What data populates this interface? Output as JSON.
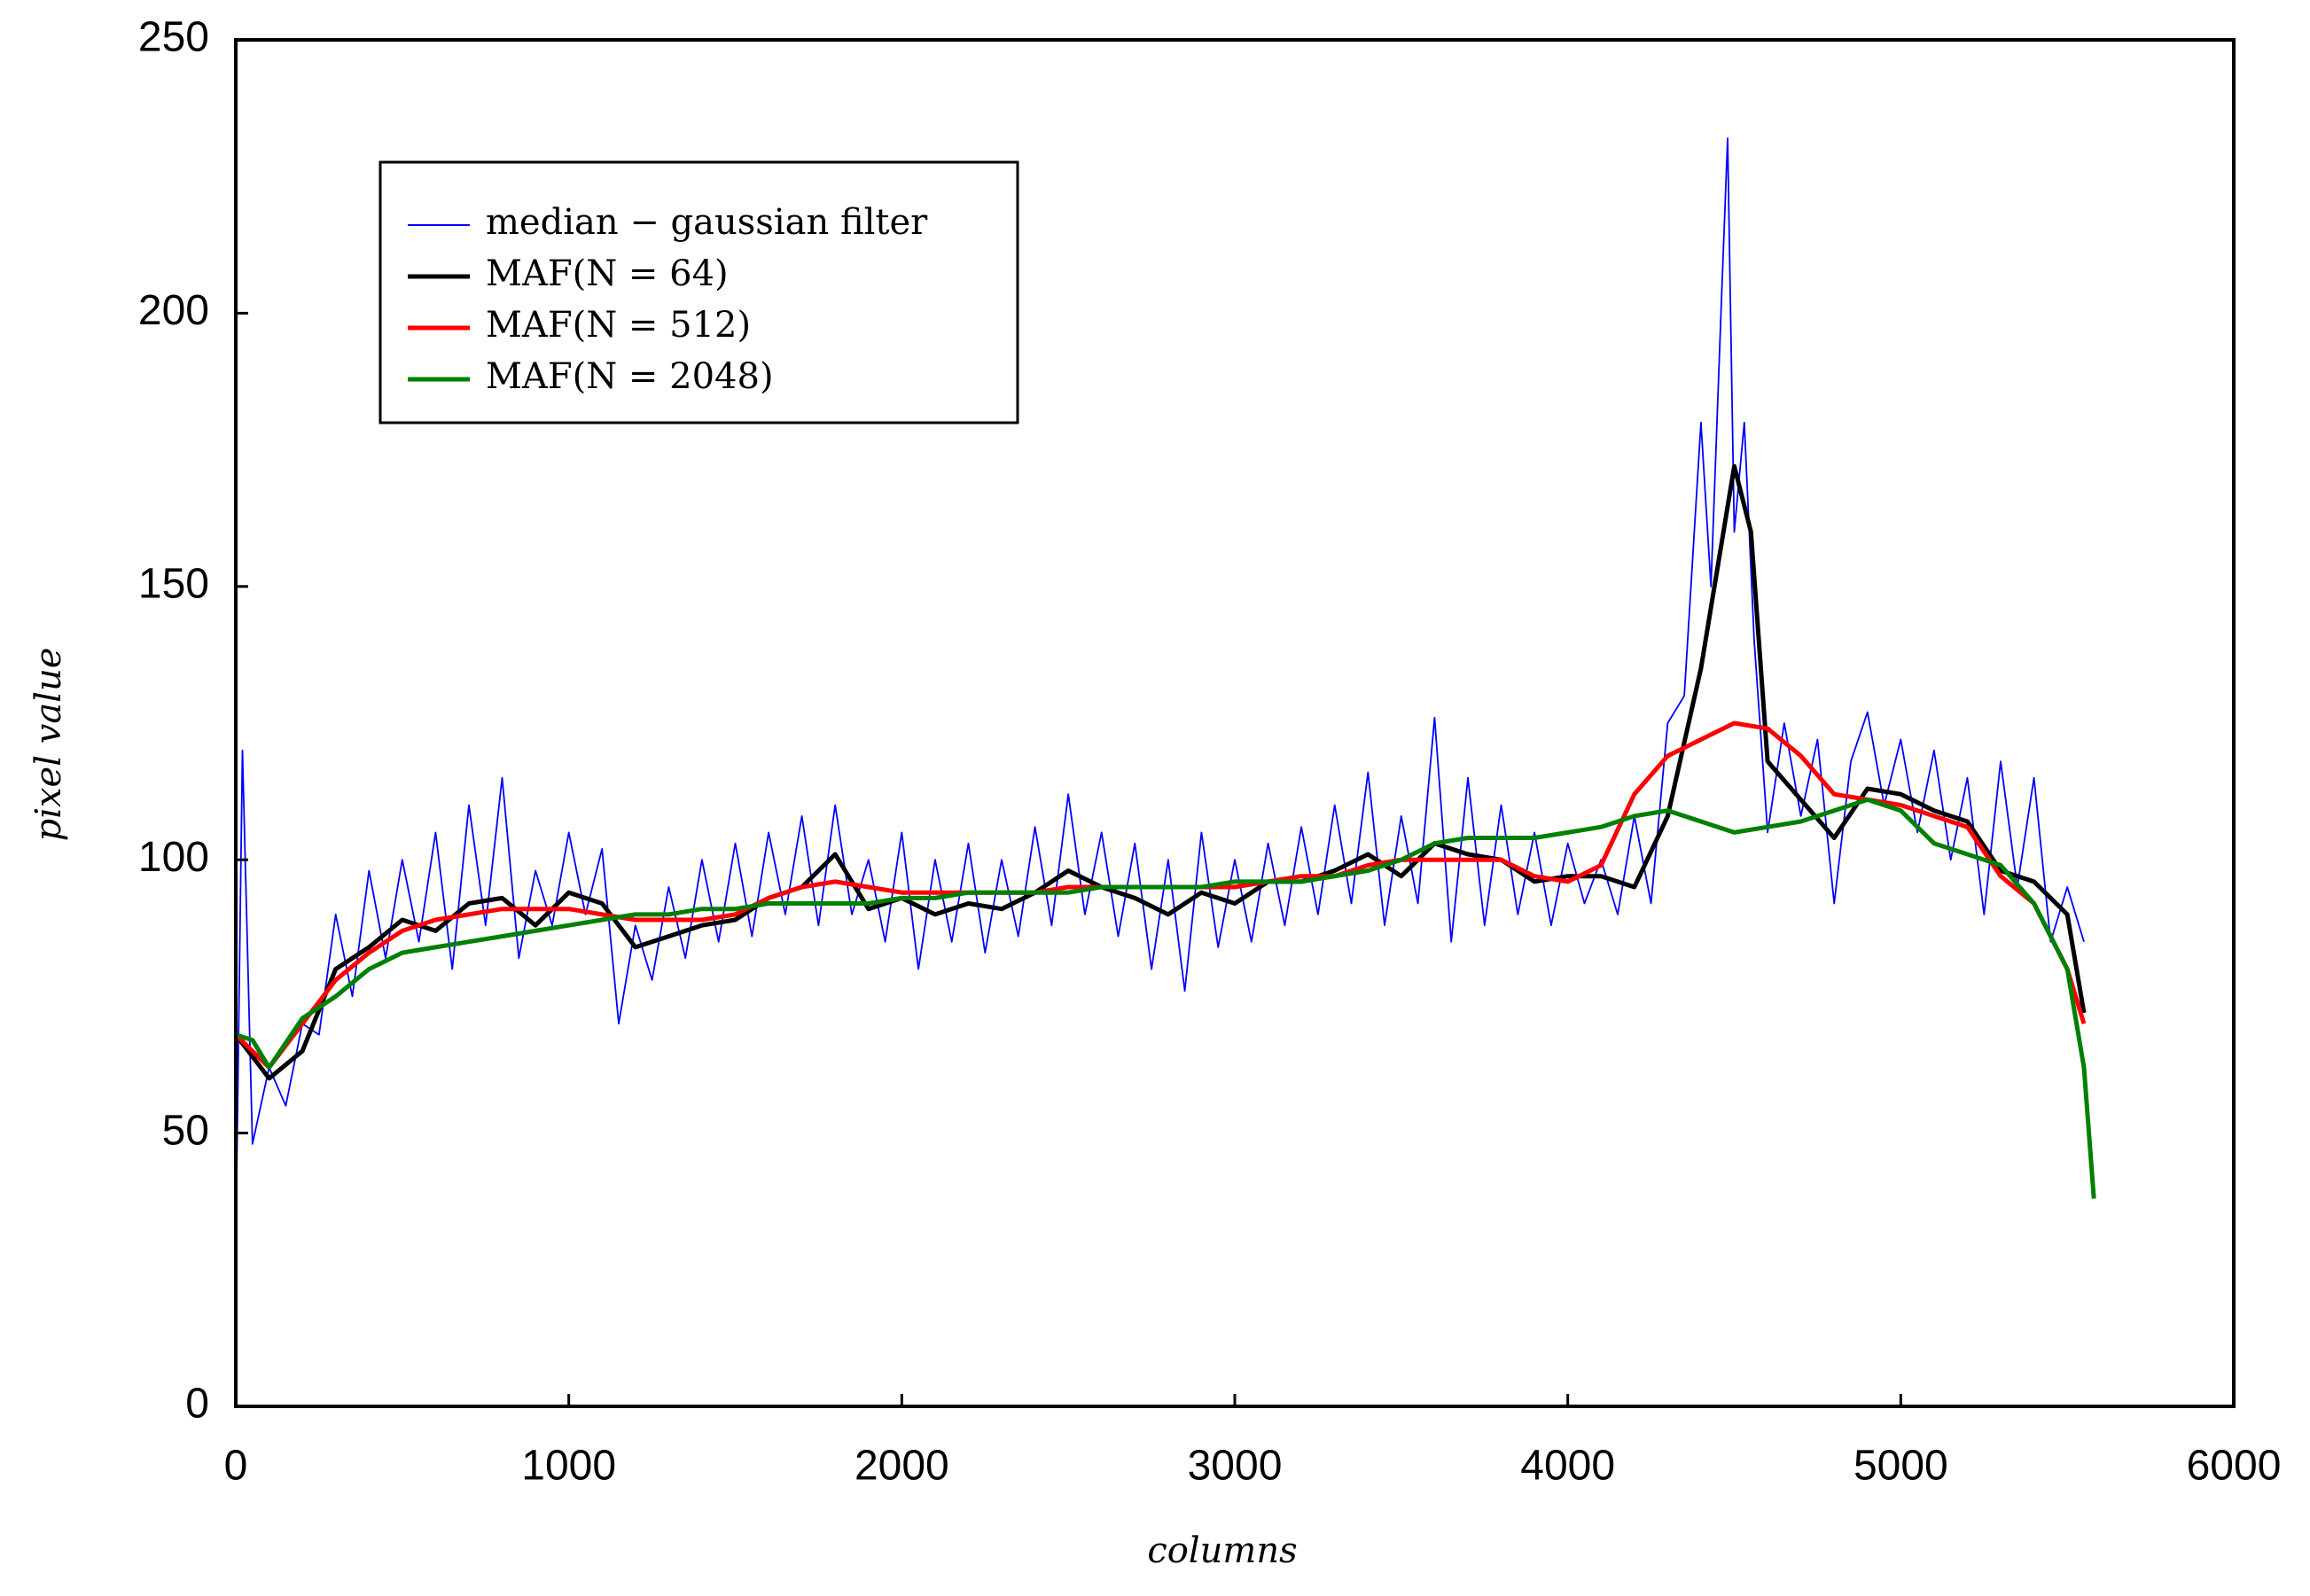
{
  "chart_data": {
    "type": "line",
    "xlabel": "columns",
    "ylabel": "pixel value",
    "xlim": [
      0,
      6000
    ],
    "xticks": [
      0,
      1000,
      2000,
      3000,
      4000,
      5000,
      6000
    ],
    "ylim": [
      0,
      250
    ],
    "yticks": [
      0,
      50,
      100,
      150,
      200,
      250
    ],
    "legend": "upper left",
    "series": [
      {
        "name": "median − gaussian filter",
        "color": "#0000ff",
        "x": [
          0,
          20,
          50,
          100,
          150,
          200,
          250,
          300,
          350,
          400,
          450,
          500,
          550,
          600,
          650,
          700,
          750,
          800,
          850,
          900,
          950,
          1000,
          1050,
          1100,
          1150,
          1200,
          1250,
          1300,
          1350,
          1400,
          1450,
          1500,
          1550,
          1600,
          1650,
          1700,
          1750,
          1800,
          1850,
          1900,
          1950,
          2000,
          2050,
          2100,
          2150,
          2200,
          2250,
          2300,
          2350,
          2400,
          2450,
          2500,
          2550,
          2600,
          2650,
          2700,
          2750,
          2800,
          2850,
          2900,
          2950,
          3000,
          3050,
          3100,
          3150,
          3200,
          3250,
          3300,
          3350,
          3400,
          3450,
          3500,
          3550,
          3600,
          3650,
          3700,
          3750,
          3800,
          3850,
          3900,
          3950,
          4000,
          4050,
          4100,
          4150,
          4200,
          4250,
          4300,
          4350,
          4400,
          4430,
          4460,
          4480,
          4500,
          4530,
          4560,
          4600,
          4650,
          4700,
          4750,
          4800,
          4850,
          4900,
          4950,
          5000,
          5050,
          5100,
          5150,
          5200,
          5250,
          5300,
          5350,
          5400,
          5450,
          5500,
          5550
        ],
        "values": [
          30,
          120,
          48,
          62,
          55,
          70,
          68,
          90,
          75,
          98,
          82,
          100,
          85,
          105,
          80,
          110,
          88,
          115,
          82,
          98,
          88,
          105,
          90,
          102,
          70,
          88,
          78,
          95,
          82,
          100,
          85,
          103,
          86,
          105,
          90,
          108,
          88,
          110,
          90,
          100,
          85,
          105,
          80,
          100,
          85,
          103,
          83,
          100,
          86,
          106,
          88,
          112,
          90,
          105,
          86,
          103,
          80,
          100,
          76,
          105,
          84,
          100,
          85,
          103,
          88,
          106,
          90,
          110,
          92,
          116,
          88,
          108,
          92,
          126,
          85,
          115,
          88,
          110,
          90,
          105,
          88,
          103,
          92,
          100,
          90,
          108,
          92,
          125,
          130,
          180,
          150,
          200,
          232,
          160,
          180,
          140,
          105,
          125,
          108,
          122,
          92,
          118,
          127,
          110,
          122,
          105,
          120,
          100,
          115,
          90,
          118,
          95,
          115,
          85,
          95,
          85
        ]
      },
      {
        "name": "MAF(N = 64)",
        "color": "#000000",
        "x": [
          0,
          100,
          200,
          300,
          400,
          500,
          600,
          700,
          800,
          900,
          1000,
          1100,
          1200,
          1300,
          1400,
          1500,
          1600,
          1700,
          1800,
          1900,
          2000,
          2100,
          2200,
          2300,
          2400,
          2500,
          2600,
          2700,
          2800,
          2900,
          3000,
          3100,
          3200,
          3300,
          3400,
          3500,
          3600,
          3700,
          3800,
          3900,
          4000,
          4100,
          4200,
          4300,
          4400,
          4500,
          4550,
          4600,
          4700,
          4800,
          4900,
          5000,
          5100,
          5200,
          5300,
          5400,
          5500,
          5550
        ],
        "values": [
          68,
          60,
          65,
          80,
          84,
          89,
          87,
          92,
          93,
          88,
          94,
          92,
          84,
          86,
          88,
          89,
          93,
          95,
          101,
          91,
          93,
          90,
          92,
          91,
          94,
          98,
          95,
          93,
          90,
          94,
          92,
          96,
          96,
          98,
          101,
          97,
          103,
          101,
          100,
          96,
          97,
          97,
          95,
          108,
          135,
          172,
          160,
          118,
          111,
          104,
          113,
          112,
          109,
          107,
          98,
          96,
          90,
          72
        ]
      },
      {
        "name": "MAF(N = 512)",
        "color": "#ff0000",
        "x": [
          0,
          100,
          200,
          300,
          400,
          500,
          600,
          700,
          800,
          900,
          1000,
          1100,
          1200,
          1300,
          1400,
          1500,
          1600,
          1700,
          1800,
          1900,
          2000,
          2100,
          2200,
          2300,
          2400,
          2500,
          2600,
          2700,
          2800,
          2900,
          3000,
          3100,
          3200,
          3300,
          3400,
          3500,
          3600,
          3700,
          3800,
          3900,
          4000,
          4100,
          4200,
          4300,
          4400,
          4500,
          4600,
          4700,
          4800,
          4900,
          5000,
          5100,
          5200,
          5300,
          5400,
          5500,
          5550
        ],
        "values": [
          68,
          62,
          70,
          78,
          83,
          87,
          89,
          90,
          91,
          91,
          91,
          90,
          89,
          89,
          89,
          90,
          93,
          95,
          96,
          95,
          94,
          94,
          94,
          94,
          94,
          95,
          95,
          95,
          95,
          95,
          95,
          96,
          97,
          97,
          99,
          100,
          100,
          100,
          100,
          97,
          96,
          99,
          112,
          119,
          122,
          125,
          124,
          119,
          112,
          111,
          110,
          108,
          106,
          97,
          92,
          80,
          70
        ]
      },
      {
        "name": "MAF(N = 2048)",
        "color": "#008000",
        "x": [
          0,
          50,
          100,
          200,
          300,
          400,
          500,
          600,
          700,
          800,
          900,
          1000,
          1100,
          1200,
          1300,
          1400,
          1500,
          1600,
          1700,
          1800,
          1900,
          2000,
          2100,
          2200,
          2300,
          2400,
          2500,
          2600,
          2700,
          2800,
          2900,
          3000,
          3100,
          3200,
          3300,
          3400,
          3500,
          3600,
          3700,
          3800,
          3900,
          4000,
          4100,
          4200,
          4300,
          4400,
          4500,
          4600,
          4700,
          4800,
          4900,
          5000,
          5100,
          5200,
          5300,
          5400,
          5500,
          5550,
          5580
        ],
        "values": [
          68,
          67,
          62,
          71,
          75,
          80,
          83,
          84,
          85,
          86,
          87,
          88,
          89,
          90,
          90,
          91,
          91,
          92,
          92,
          92,
          92,
          93,
          93,
          94,
          94,
          94,
          94,
          95,
          95,
          95,
          95,
          96,
          96,
          96,
          97,
          98,
          100,
          103,
          104,
          104,
          104,
          105,
          106,
          108,
          109,
          107,
          105,
          106,
          107,
          109,
          111,
          109,
          103,
          101,
          99,
          92,
          80,
          62,
          38
        ]
      }
    ]
  }
}
